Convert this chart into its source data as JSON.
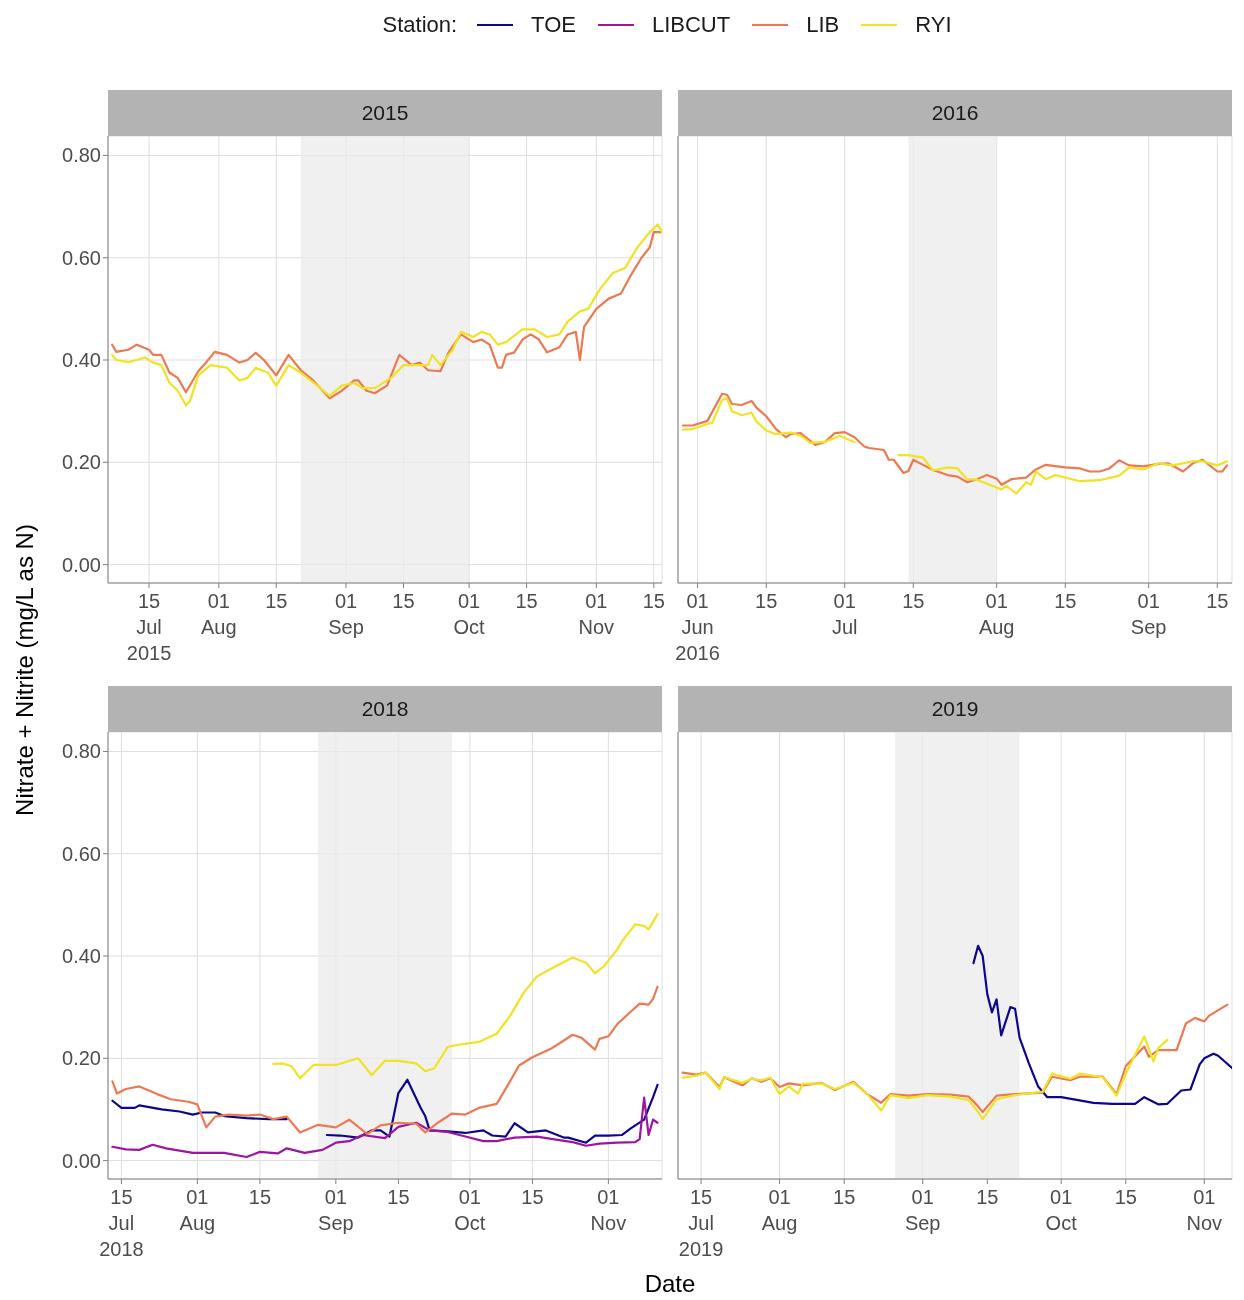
{
  "chart_data": [
    {
      "type": "line",
      "title": "2015",
      "legend": "top",
      "ylabel": "Nitrate + Nitrite (mg/L as N)",
      "xlim": [
        "2015-07-05",
        "2015-11-17"
      ],
      "ylim": [
        -0.036,
        0.838
      ],
      "xticks": [
        {
          "value": "2015-07-15",
          "label": "15\nJul\n2015"
        },
        {
          "value": "2015-08-01",
          "label": "01\nAug"
        },
        {
          "value": "2015-08-15",
          "label": "15"
        },
        {
          "value": "2015-09-01",
          "label": "01\nSep"
        },
        {
          "value": "2015-09-15",
          "label": "15"
        },
        {
          "value": "2015-10-01",
          "label": "01\nOct"
        },
        {
          "value": "2015-10-15",
          "label": "15"
        },
        {
          "value": "2015-11-01",
          "label": "01\nNov"
        },
        {
          "value": "2015-11-15",
          "label": "15"
        }
      ],
      "yticks": [
        {
          "value": 0,
          "label": "0.00"
        },
        {
          "value": 0.2,
          "label": "0.20"
        },
        {
          "value": 0.4,
          "label": "0.40"
        },
        {
          "value": 0.6,
          "label": "0.60"
        },
        {
          "value": 0.8,
          "label": "0.80"
        }
      ],
      "grid": true,
      "bands": [
        {
          "axis": "x",
          "from": "2015-08-21",
          "to": "2015-10-01",
          "color": "#ebebeb"
        }
      ],
      "series": [
        {
          "name": "LIB",
          "color": "#ed7953",
          "x": [
            "2015-07-06",
            "2015-07-07",
            "2015-07-10",
            "2015-07-12",
            "2015-07-15",
            "2015-07-16",
            "2015-07-18",
            "2015-07-20",
            "2015-07-22",
            "2015-07-24",
            "2015-07-27",
            "2015-07-29",
            "2015-07-31",
            "2015-08-03",
            "2015-08-06",
            "2015-08-08",
            "2015-08-10",
            "2015-08-12",
            "2015-08-15",
            "2015-08-18",
            "2015-08-21",
            "2015-08-24",
            "2015-08-28",
            "2015-08-31",
            "2015-09-03",
            "2015-09-04",
            "2015-09-06",
            "2015-09-08",
            "2015-09-11",
            "2015-09-14",
            "2015-09-17",
            "2015-09-19",
            "2015-09-21",
            "2015-09-24",
            "2015-09-26",
            "2015-09-29",
            "2015-10-02",
            "2015-10-04",
            "2015-10-06",
            "2015-10-08",
            "2015-10-09",
            "2015-10-10",
            "2015-10-12",
            "2015-10-14",
            "2015-10-16",
            "2015-10-18",
            "2015-10-20",
            "2015-10-23",
            "2015-10-25",
            "2015-10-27",
            "2015-10-28",
            "2015-10-29",
            "2015-11-01",
            "2015-11-04",
            "2015-11-07",
            "2015-11-09",
            "2015-11-12",
            "2015-11-14",
            "2015-11-15",
            "2015-11-17"
          ],
          "values": [
            0.43,
            0.416,
            0.42,
            0.43,
            0.42,
            0.41,
            0.41,
            0.375,
            0.365,
            0.337,
            0.378,
            0.396,
            0.416,
            0.41,
            0.395,
            0.4,
            0.414,
            0.4,
            0.37,
            0.41,
            0.38,
            0.36,
            0.325,
            0.34,
            0.36,
            0.36,
            0.34,
            0.335,
            0.35,
            0.41,
            0.39,
            0.395,
            0.38,
            0.378,
            0.415,
            0.45,
            0.435,
            0.44,
            0.43,
            0.385,
            0.385,
            0.41,
            0.415,
            0.44,
            0.45,
            0.44,
            0.415,
            0.425,
            0.45,
            0.455,
            0.4,
            0.465,
            0.5,
            0.52,
            0.53,
            0.56,
            0.6,
            0.62,
            0.65,
            0.65
          ]
        },
        {
          "name": "RYI",
          "color": "#f0e321",
          "x": [
            "2015-07-06",
            "2015-07-07",
            "2015-07-10",
            "2015-07-12",
            "2015-07-14",
            "2015-07-16",
            "2015-07-18",
            "2015-07-20",
            "2015-07-22",
            "2015-07-24",
            "2015-07-25",
            "2015-07-27",
            "2015-07-30",
            "2015-08-03",
            "2015-08-06",
            "2015-08-08",
            "2015-08-10",
            "2015-08-13",
            "2015-08-15",
            "2015-08-18",
            "2015-08-21",
            "2015-08-25",
            "2015-08-28",
            "2015-08-31",
            "2015-09-03",
            "2015-09-05",
            "2015-09-08",
            "2015-09-12",
            "2015-09-15",
            "2015-09-18",
            "2015-09-21",
            "2015-09-22",
            "2015-09-24",
            "2015-09-27",
            "2015-09-29",
            "2015-10-02",
            "2015-10-04",
            "2015-10-06",
            "2015-10-08",
            "2015-10-10",
            "2015-10-14",
            "2015-10-17",
            "2015-10-20",
            "2015-10-23",
            "2015-10-25",
            "2015-10-28",
            "2015-10-30",
            "2015-11-02",
            "2015-11-05",
            "2015-11-08",
            "2015-11-11",
            "2015-11-14",
            "2015-11-16",
            "2015-11-17"
          ],
          "values": [
            0.41,
            0.4,
            0.396,
            0.4,
            0.405,
            0.395,
            0.39,
            0.355,
            0.34,
            0.311,
            0.32,
            0.37,
            0.39,
            0.385,
            0.36,
            0.365,
            0.385,
            0.375,
            0.35,
            0.39,
            0.375,
            0.35,
            0.33,
            0.35,
            0.355,
            0.345,
            0.345,
            0.365,
            0.39,
            0.39,
            0.39,
            0.41,
            0.39,
            0.42,
            0.455,
            0.445,
            0.455,
            0.45,
            0.43,
            0.435,
            0.46,
            0.46,
            0.445,
            0.45,
            0.475,
            0.495,
            0.5,
            0.54,
            0.57,
            0.58,
            0.62,
            0.65,
            0.665,
            0.65
          ]
        }
      ]
    },
    {
      "type": "line",
      "title": "2016",
      "legend": "top",
      "tick_labels": "x",
      "xlim": [
        "2016-05-28",
        "2016-09-18"
      ],
      "ylim": [
        -0.036,
        0.838
      ],
      "xticks": [
        {
          "value": "2016-06-01",
          "label": "01\nJun\n2016"
        },
        {
          "value": "2016-06-15",
          "label": "15"
        },
        {
          "value": "2016-07-01",
          "label": "01\nJul"
        },
        {
          "value": "2016-07-15",
          "label": "15"
        },
        {
          "value": "2016-08-01",
          "label": "01\nAug"
        },
        {
          "value": "2016-08-15",
          "label": "15"
        },
        {
          "value": "2016-09-01",
          "label": "01\nSep"
        },
        {
          "value": "2016-09-15",
          "label": "15"
        }
      ],
      "yticks": [
        {
          "value": 0,
          "label": "0.00"
        },
        {
          "value": 0.2,
          "label": "0.20"
        },
        {
          "value": 0.4,
          "label": "0.40"
        },
        {
          "value": 0.6,
          "label": "0.60"
        },
        {
          "value": 0.8,
          "label": "0.80"
        }
      ],
      "grid": true,
      "bands": [
        {
          "axis": "x",
          "from": "2016-07-14",
          "to": "2016-08-01",
          "color": "#ebebeb"
        }
      ],
      "series": [
        {
          "name": "LIB",
          "color": "#ed7953",
          "x": [
            "2016-05-29",
            "2016-05-31",
            "2016-06-03",
            "2016-06-06",
            "2016-06-07",
            "2016-06-08",
            "2016-06-10",
            "2016-06-12",
            "2016-06-13",
            "2016-06-15",
            "2016-06-17",
            "2016-06-19",
            "2016-06-20",
            "2016-06-22",
            "2016-06-23",
            "2016-06-25",
            "2016-06-27",
            "2016-06-29",
            "2016-07-01",
            "2016-07-03",
            "2016-07-05",
            "2016-07-06",
            "2016-07-09",
            "2016-07-10",
            "2016-07-11",
            "2016-07-13",
            "2016-07-14",
            "2016-07-15",
            "2016-07-17",
            "2016-07-19",
            "2016-07-22",
            "2016-07-24",
            "2016-07-26",
            "2016-07-28",
            "2016-07-30",
            "2016-08-01",
            "2016-08-02",
            "2016-08-04",
            "2016-08-07",
            "2016-08-09",
            "2016-08-11",
            "2016-08-15",
            "2016-08-18",
            "2016-08-20",
            "2016-08-22",
            "2016-08-24",
            "2016-08-26",
            "2016-08-28",
            "2016-08-31",
            "2016-09-03",
            "2016-09-05",
            "2016-09-08",
            "2016-09-10",
            "2016-09-12",
            "2016-09-15",
            "2016-09-16",
            "2016-09-17"
          ],
          "values": [
            0.272,
            0.272,
            0.281,
            0.334,
            0.332,
            0.314,
            0.312,
            0.32,
            0.307,
            0.29,
            0.265,
            0.249,
            0.255,
            0.257,
            0.249,
            0.234,
            0.24,
            0.257,
            0.259,
            0.249,
            0.231,
            0.228,
            0.224,
            0.205,
            0.205,
            0.179,
            0.183,
            0.205,
            0.195,
            0.185,
            0.175,
            0.172,
            0.161,
            0.167,
            0.175,
            0.168,
            0.156,
            0.167,
            0.17,
            0.186,
            0.195,
            0.19,
            0.188,
            0.182,
            0.182,
            0.188,
            0.204,
            0.194,
            0.192,
            0.197,
            0.198,
            0.182,
            0.198,
            0.205,
            0.182,
            0.182,
            0.194
          ]
        },
        {
          "name": "RYI",
          "color": "#f0e321",
          "x": [
            "2016-05-29",
            "2016-05-31",
            "2016-06-03",
            "2016-06-04",
            "2016-06-06",
            "2016-06-07",
            "2016-06-08",
            "2016-06-10",
            "2016-06-12",
            "2016-06-13",
            "2016-06-15",
            "2016-06-17",
            "2016-06-20",
            "2016-06-22",
            "2016-06-24",
            "2016-06-27",
            "2016-06-30",
            "2016-07-03",
            "2016-07-07",
            "2016-07-12",
            "2016-07-14",
            "2016-07-17",
            "2016-07-19",
            "2016-07-22",
            "2016-07-24",
            "2016-07-26",
            "2016-07-28",
            "2016-07-31",
            "2016-08-02",
            "2016-08-03",
            "2016-08-05",
            "2016-08-07",
            "2016-08-08",
            "2016-08-09",
            "2016-08-11",
            "2016-08-13",
            "2016-08-18",
            "2016-08-22",
            "2016-08-26",
            "2016-08-28",
            "2016-08-31",
            "2016-09-03",
            "2016-09-06",
            "2016-09-10",
            "2016-09-12",
            "2016-09-15",
            "2016-09-17"
          ],
          "values": [
            0.264,
            0.265,
            0.275,
            0.277,
            0.322,
            0.325,
            0.3,
            0.292,
            0.297,
            0.28,
            0.262,
            0.255,
            0.258,
            0.252,
            0.238,
            0.24,
            0.252,
            0.239,
            null,
            0.214,
            0.214,
            0.209,
            0.184,
            0.19,
            0.188,
            0.167,
            0.166,
            0.154,
            0.147,
            0.154,
            0.139,
            0.161,
            0.156,
            0.182,
            0.167,
            0.175,
            0.163,
            0.165,
            0.174,
            0.19,
            0.186,
            0.198,
            0.194,
            0.202,
            0.202,
            0.194,
            0.202
          ]
        }
      ]
    },
    {
      "type": "line",
      "title": "2018",
      "xlabel": "Date",
      "legend": "top",
      "legend_title": "Station:",
      "xlim": [
        "2018-07-12",
        "2018-11-13"
      ],
      "ylim": [
        -0.036,
        0.838
      ],
      "xticks": [
        {
          "value": "2018-07-15",
          "label": "15\nJul\n2018"
        },
        {
          "value": "2018-08-01",
          "label": "01\nAug"
        },
        {
          "value": "2018-08-15",
          "label": "15"
        },
        {
          "value": "2018-09-01",
          "label": "01\nSep"
        },
        {
          "value": "2018-09-15",
          "label": "15"
        },
        {
          "value": "2018-10-01",
          "label": "01\nOct"
        },
        {
          "value": "2018-10-15",
          "label": "15"
        },
        {
          "value": "2018-11-01",
          "label": "01\nNov"
        }
      ],
      "yticks": [
        {
          "value": 0,
          "label": "0.00"
        },
        {
          "value": 0.2,
          "label": "0.20"
        },
        {
          "value": 0.4,
          "label": "0.40"
        },
        {
          "value": 0.6,
          "label": "0.60"
        },
        {
          "value": 0.8,
          "label": "0.80"
        }
      ],
      "grid": true,
      "bands": [
        {
          "axis": "x",
          "from": "2018-08-28",
          "to": "2018-09-27",
          "color": "#ebebeb"
        }
      ],
      "series": [
        {
          "name": "TOE",
          "color": "#0d0887",
          "x": [
            "2018-07-13",
            "2018-07-15",
            "2018-07-18",
            "2018-07-19",
            "2018-07-24",
            "2018-07-28",
            "2018-07-31",
            "2018-08-02",
            "2018-08-05",
            "2018-08-07",
            "2018-08-12",
            "2018-08-17",
            "2018-08-21",
            "2018-08-25",
            "2018-08-30",
            "2018-09-02",
            "2018-09-06",
            "2018-09-09",
            "2018-09-11",
            "2018-09-13",
            "2018-09-15",
            "2018-09-17",
            "2018-09-20",
            "2018-09-21",
            "2018-09-22",
            "2018-09-26",
            "2018-09-30",
            "2018-10-04",
            "2018-10-06",
            "2018-10-09",
            "2018-10-11",
            "2018-10-14",
            "2018-10-18",
            "2018-10-22",
            "2018-10-23",
            "2018-10-27",
            "2018-10-29",
            "2018-11-01",
            "2018-11-04",
            "2018-11-06",
            "2018-11-09",
            "2018-11-11",
            "2018-11-12"
          ],
          "values": [
            0.117,
            0.103,
            0.103,
            0.108,
            0.1,
            0.096,
            0.09,
            0.094,
            0.094,
            0.087,
            0.083,
            0.081,
            0.081,
            null,
            0.05,
            0.049,
            0.045,
            0.059,
            0.059,
            0.047,
            0.132,
            0.158,
            0.103,
            0.087,
            0.059,
            0.057,
            0.054,
            0.059,
            0.049,
            0.047,
            0.073,
            0.055,
            0.059,
            0.045,
            0.045,
            0.035,
            0.049,
            0.049,
            0.05,
            0.063,
            0.08,
            0.124,
            0.148
          ]
        },
        {
          "name": "LIBCUT",
          "color": "#9c179e",
          "x": [
            "2018-07-13",
            "2018-07-16",
            "2018-07-19",
            "2018-07-22",
            "2018-07-25",
            "2018-07-31",
            "2018-08-07",
            "2018-08-12",
            "2018-08-15",
            "2018-08-19",
            "2018-08-21",
            "2018-08-25",
            "2018-08-29",
            "2018-09-01",
            "2018-09-04",
            "2018-09-07",
            "2018-09-12",
            "2018-09-15",
            "2018-09-19",
            "2018-09-22",
            "2018-09-26",
            "2018-09-30",
            "2018-10-04",
            "2018-10-07",
            "2018-10-11",
            "2018-10-16",
            "2018-10-21",
            "2018-10-24",
            "2018-10-27",
            "2018-10-30",
            "2018-11-03",
            "2018-11-07",
            "2018-11-08",
            "2018-11-09",
            "2018-11-10",
            "2018-11-11",
            "2018-11-12"
          ],
          "values": [
            0.027,
            0.022,
            0.021,
            0.031,
            0.024,
            0.015,
            0.015,
            0.007,
            0.017,
            0.014,
            0.024,
            0.015,
            0.021,
            0.035,
            0.038,
            0.05,
            0.044,
            0.066,
            0.074,
            0.059,
            0.056,
            0.047,
            0.038,
            0.038,
            0.045,
            0.047,
            0.04,
            0.036,
            0.029,
            0.033,
            0.035,
            0.036,
            0.042,
            0.123,
            0.05,
            0.08,
            0.074
          ]
        },
        {
          "name": "LIB",
          "color": "#ed7953",
          "x": [
            "2018-07-13",
            "2018-07-14",
            "2018-07-16",
            "2018-07-19",
            "2018-07-23",
            "2018-07-26",
            "2018-07-30",
            "2018-08-01",
            "2018-08-03",
            "2018-08-05",
            "2018-08-08",
            "2018-08-12",
            "2018-08-15",
            "2018-08-18",
            "2018-08-21",
            "2018-08-24",
            "2018-08-28",
            "2018-09-01",
            "2018-09-04",
            "2018-09-08",
            "2018-09-11",
            "2018-09-15",
            "2018-09-19",
            "2018-09-21",
            "2018-09-24",
            "2018-09-27",
            "2018-09-30",
            "2018-10-03",
            "2018-10-07",
            "2018-10-10",
            "2018-10-12",
            "2018-10-15",
            "2018-10-19",
            "2018-10-21",
            "2018-10-24",
            "2018-10-26",
            "2018-10-29",
            "2018-10-30",
            "2018-11-01",
            "2018-11-03",
            "2018-11-06",
            "2018-11-08",
            "2018-11-10",
            "2018-11-11",
            "2018-11-12"
          ],
          "values": [
            0.155,
            0.131,
            0.14,
            0.145,
            0.13,
            0.12,
            0.115,
            0.11,
            0.065,
            0.086,
            0.09,
            0.088,
            0.09,
            0.081,
            0.086,
            0.055,
            0.07,
            0.065,
            0.08,
            0.052,
            0.069,
            0.074,
            0.072,
            0.055,
            0.075,
            0.092,
            0.09,
            0.103,
            0.111,
            0.155,
            0.186,
            0.202,
            0.218,
            0.229,
            0.246,
            0.24,
            0.217,
            0.238,
            0.243,
            0.267,
            0.291,
            0.307,
            0.305,
            0.316,
            0.34
          ]
        },
        {
          "name": "RYI",
          "color": "#f0e321",
          "x": [
            "2018-08-18",
            "2018-08-20",
            "2018-08-22",
            "2018-08-24",
            "2018-08-27",
            "2018-09-01",
            "2018-09-06",
            "2018-09-09",
            "2018-09-12",
            "2018-09-15",
            "2018-09-19",
            "2018-09-21",
            "2018-09-23",
            "2018-09-26",
            "2018-09-28",
            "2018-10-03",
            "2018-10-07",
            "2018-10-10",
            "2018-10-13",
            "2018-10-16",
            "2018-10-20",
            "2018-10-24",
            "2018-10-27",
            "2018-10-29",
            "2018-10-31",
            "2018-11-03",
            "2018-11-04",
            "2018-11-07",
            "2018-11-09",
            "2018-11-10",
            "2018-11-12"
          ],
          "values": [
            0.189,
            0.19,
            0.185,
            0.161,
            0.187,
            0.187,
            0.2,
            0.167,
            0.195,
            0.195,
            0.19,
            0.175,
            0.18,
            0.222,
            0.226,
            0.232,
            0.248,
            0.283,
            0.328,
            0.36,
            0.379,
            0.397,
            0.387,
            0.366,
            0.38,
            0.413,
            0.428,
            0.462,
            0.459,
            0.452,
            0.482
          ]
        }
      ]
    },
    {
      "type": "line",
      "title": "2019",
      "legend": "top",
      "tick_labels": "x",
      "xlim": [
        "2019-07-10",
        "2019-11-07"
      ],
      "ylim": [
        -0.036,
        0.838
      ],
      "xticks": [
        {
          "value": "2019-07-15",
          "label": "15\nJul\n2019"
        },
        {
          "value": "2019-08-01",
          "label": "01\nAug"
        },
        {
          "value": "2019-08-15",
          "label": "15"
        },
        {
          "value": "2019-09-01",
          "label": "01\nSep"
        },
        {
          "value": "2019-09-15",
          "label": "15"
        },
        {
          "value": "2019-10-01",
          "label": "01\nOct"
        },
        {
          "value": "2019-10-15",
          "label": "15"
        },
        {
          "value": "2019-11-01",
          "label": "01\nNov"
        }
      ],
      "yticks": [
        {
          "value": 0,
          "label": "0.00"
        },
        {
          "value": 0.2,
          "label": "0.20"
        },
        {
          "value": 0.4,
          "label": "0.40"
        },
        {
          "value": 0.6,
          "label": "0.60"
        },
        {
          "value": 0.8,
          "label": "0.80"
        }
      ],
      "grid": true,
      "bands": [
        {
          "axis": "x",
          "from": "2019-08-26",
          "to": "2019-09-22",
          "color": "#ebebeb"
        }
      ],
      "series": [
        {
          "name": "TOE",
          "color": "#0d0887",
          "x": [
            "2019-09-12",
            "2019-09-13",
            "2019-09-14",
            "2019-09-15",
            "2019-09-16",
            "2019-09-17",
            "2019-09-18",
            "2019-09-20",
            "2019-09-21",
            "2019-09-22",
            "2019-09-24",
            "2019-09-26",
            "2019-09-28",
            "2019-10-01",
            "2019-10-08",
            "2019-10-12",
            "2019-10-17",
            "2019-10-19",
            "2019-10-22",
            "2019-10-24",
            "2019-10-27",
            "2019-10-29",
            "2019-10-31",
            "2019-11-01",
            "2019-11-03",
            "2019-11-04",
            "2019-11-07"
          ],
          "values": [
            0.386,
            0.42,
            0.4,
            0.325,
            0.29,
            0.315,
            0.245,
            0.3,
            0.297,
            0.24,
            0.19,
            0.145,
            0.124,
            0.124,
            0.113,
            0.111,
            0.111,
            0.124,
            0.11,
            0.111,
            0.137,
            0.139,
            0.188,
            0.2,
            0.209,
            0.205,
            0.181
          ]
        },
        {
          "name": "LIB",
          "color": "#ed7953",
          "x": [
            "2019-07-11",
            "2019-07-14",
            "2019-07-16",
            "2019-07-19",
            "2019-07-20",
            "2019-07-24",
            "2019-07-26",
            "2019-07-28",
            "2019-07-30",
            "2019-08-01",
            "2019-08-03",
            "2019-08-06",
            "2019-08-10",
            "2019-08-13",
            "2019-08-17",
            "2019-08-20",
            "2019-08-23",
            "2019-08-25",
            "2019-08-29",
            "2019-09-02",
            "2019-09-07",
            "2019-09-11",
            "2019-09-13",
            "2019-09-14",
            "2019-09-17",
            "2019-09-21",
            "2019-09-27",
            "2019-09-29",
            "2019-10-03",
            "2019-10-05",
            "2019-10-10",
            "2019-10-13",
            "2019-10-15",
            "2019-10-19",
            "2019-10-20",
            "2019-10-22",
            "2019-10-26",
            "2019-10-28",
            "2019-10-30",
            "2019-11-01",
            "2019-11-02",
            "2019-11-06"
          ],
          "values": [
            0.172,
            0.168,
            0.172,
            0.144,
            0.163,
            0.147,
            0.161,
            0.154,
            0.161,
            0.144,
            0.151,
            0.147,
            0.152,
            0.138,
            0.154,
            0.13,
            0.113,
            0.13,
            0.127,
            0.13,
            0.129,
            0.125,
            0.106,
            0.095,
            0.127,
            0.13,
            0.133,
            0.164,
            0.157,
            0.164,
            0.164,
            0.13,
            0.185,
            0.223,
            0.203,
            0.216,
            0.216,
            0.268,
            0.279,
            0.272,
            0.283,
            0.305
          ]
        },
        {
          "name": "RYI",
          "color": "#f0e321",
          "x": [
            "2019-07-11",
            "2019-07-14",
            "2019-07-16",
            "2019-07-19",
            "2019-07-20",
            "2019-07-24",
            "2019-07-26",
            "2019-07-28",
            "2019-07-30",
            "2019-08-01",
            "2019-08-03",
            "2019-08-05",
            "2019-08-06",
            "2019-08-10",
            "2019-08-13",
            "2019-08-17",
            "2019-08-20",
            "2019-08-23",
            "2019-08-25",
            "2019-08-29",
            "2019-09-02",
            "2019-09-07",
            "2019-09-11",
            "2019-09-13",
            "2019-09-14",
            "2019-09-17",
            "2019-09-21",
            "2019-09-27",
            "2019-09-29",
            "2019-10-03",
            "2019-10-05",
            "2019-10-10",
            "2019-10-13",
            "2019-10-15",
            "2019-10-19",
            "2019-10-21",
            "2019-10-22",
            "2019-10-24"
          ],
          "values": [
            0.162,
            0.166,
            0.172,
            0.14,
            0.163,
            0.152,
            0.16,
            0.157,
            0.162,
            0.13,
            0.145,
            0.131,
            0.15,
            0.151,
            0.14,
            0.152,
            0.13,
            0.098,
            0.128,
            0.122,
            0.128,
            0.125,
            0.118,
            0.095,
            0.081,
            0.12,
            0.128,
            0.135,
            0.17,
            0.16,
            0.17,
            0.163,
            0.127,
            0.17,
            0.243,
            0.194,
            0.22,
            0.236
          ]
        }
      ]
    }
  ]
}
